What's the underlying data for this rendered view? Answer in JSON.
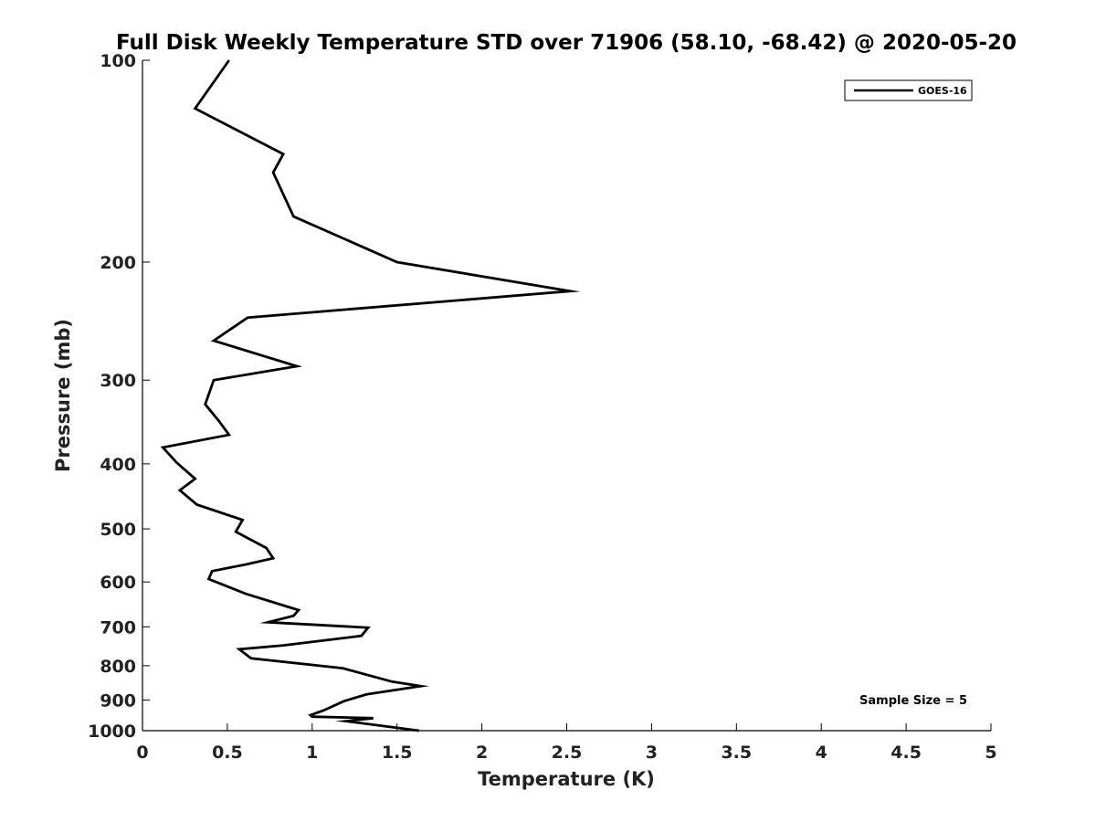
{
  "chart_data": {
    "type": "line",
    "title": "Full Disk Weekly Temperature STD over 71906 (58.10, -68.42) @ 2020-05-20",
    "xlabel": "Temperature (K)",
    "ylabel": "Pressure (mb)",
    "xlim": [
      0,
      5
    ],
    "ylim": [
      100,
      1000
    ],
    "y_scale": "log",
    "y_reversed": true,
    "grid": false,
    "legend_position": "top-right",
    "x_ticks": [
      0,
      0.5,
      1,
      1.5,
      2,
      2.5,
      3,
      3.5,
      4,
      4.5,
      5
    ],
    "x_tick_labels": [
      "0",
      "0.5",
      "1",
      "1.5",
      "2",
      "2.5",
      "3",
      "3.5",
      "4",
      "4.5",
      "5"
    ],
    "y_ticks": [
      100,
      200,
      300,
      400,
      500,
      600,
      700,
      800,
      900,
      1000
    ],
    "y_tick_labels": [
      "100",
      "200",
      "300",
      "400",
      "500",
      "600",
      "700",
      "800",
      "900",
      "1000"
    ],
    "series": [
      {
        "name": "GOES-16",
        "color": "#000000",
        "x": [
          0.51,
          0.31,
          0.83,
          0.77,
          0.89,
          1.5,
          2.52,
          0.62,
          0.42,
          0.91,
          0.42,
          0.37,
          0.45,
          0.51,
          0.12,
          0.2,
          0.31,
          0.22,
          0.32,
          0.59,
          0.55,
          0.73,
          0.77,
          0.61,
          0.41,
          0.39,
          0.61,
          0.92,
          0.89,
          0.74,
          1.33,
          1.29,
          0.83,
          0.57,
          0.64,
          1.18,
          1.47,
          1.64,
          1.32,
          1.19,
          1.07,
          0.99,
          1.0,
          1.36,
          1.2,
          1.63
        ],
        "y": [
          100,
          118,
          138,
          147,
          171,
          200,
          221,
          242,
          262,
          286,
          300,
          326,
          345,
          362,
          378,
          398,
          421,
          438,
          460,
          485,
          505,
          534,
          553,
          565,
          578,
          594,
          625,
          661,
          674,
          689,
          702,
          722,
          746,
          756,
          780,
          807,
          845,
          858,
          883,
          903,
          932,
          948,
          953,
          958,
          968,
          1000
        ]
      }
    ],
    "annotation": "Sample Size = 5"
  }
}
